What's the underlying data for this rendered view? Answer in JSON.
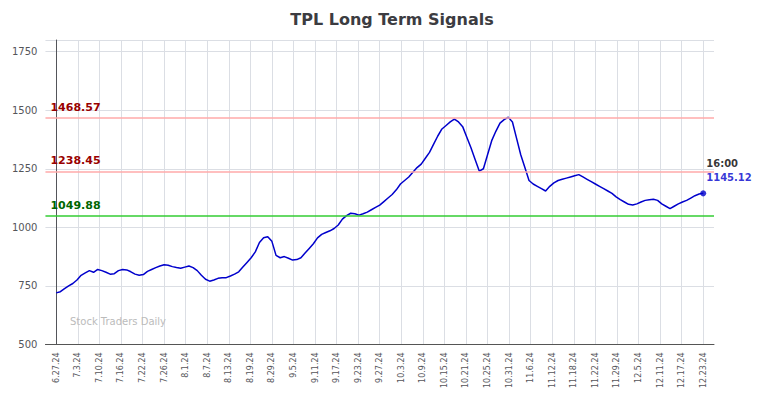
{
  "chart_data": {
    "type": "line",
    "title": "TPL Long Term Signals",
    "color": "#0000cc",
    "x": [
      0,
      0.1923,
      0.3846,
      0.5769,
      0.7692,
      0.9615,
      1.1538,
      1.3462,
      1.5385,
      1.7308,
      1.9231,
      2.1154,
      2.3077,
      2.5,
      2.6923,
      2.8846,
      3.0769,
      3.2692,
      3.4615,
      3.6538,
      3.8462,
      4.0385,
      4.2308,
      4.4231,
      4.6154,
      4.8077,
      5,
      5.1923,
      5.3846,
      5.5769,
      5.7692,
      5.9615,
      6.1538,
      6.3462,
      6.5385,
      6.7308,
      6.9231,
      7.1154,
      7.3077,
      7.5,
      7.6923,
      7.8846,
      8.0769,
      8.2692,
      8.4615,
      8.6538,
      8.8462,
      9.0385,
      9.2308,
      9.4231,
      9.6154,
      9.8077,
      10,
      10.1923,
      10.3846,
      10.5769,
      10.7692,
      10.9615,
      11.1538,
      11.3462,
      11.5385,
      11.7308,
      11.9231,
      12.1154,
      12.3077,
      12.5,
      12.6923,
      12.8846,
      13.0769,
      13.2692,
      13.4615,
      13.6538,
      13.8462,
      14.0385,
      14.2308,
      14.4231,
      14.6154,
      14.8077,
      15,
      15.1923,
      15.3846,
      15.5769,
      15.7692,
      15.9615,
      16.1538,
      16.3462,
      16.5385,
      16.7308,
      16.9231,
      17.1154,
      17.3077,
      17.5,
      17.6923,
      17.8846,
      18.0769,
      18.2692,
      18.4615,
      18.6538,
      18.8462,
      19.0385,
      19.2308,
      19.4231,
      19.6154,
      19.8077,
      20,
      20.1923,
      20.3846,
      20.5769,
      20.7692,
      20.9615,
      21.1538,
      21.3462,
      21.5385,
      21.7308,
      21.9231,
      22.1154,
      22.3077,
      22.5,
      22.6923,
      22.8846,
      23.0769,
      23.2692,
      23.4615,
      23.6538,
      23.8462,
      24.0385,
      24.2308,
      24.4231,
      24.6154,
      24.8077,
      25,
      25.1923,
      25.3846,
      25.5769,
      25.7692,
      25.9615,
      26.1538,
      26.3462,
      26.5385,
      26.7308,
      26.9231,
      27.1154,
      27.3077,
      27.5,
      27.6923,
      27.8846,
      28.0769,
      28.2692,
      28.4615,
      28.6538,
      28.8462,
      29.0385,
      29.2308,
      29.4231,
      29.6154,
      29.8077,
      30
    ],
    "values": [
      720,
      725,
      738,
      750,
      760,
      775,
      795,
      805,
      815,
      808,
      820,
      815,
      808,
      800,
      802,
      815,
      820,
      818,
      810,
      800,
      795,
      798,
      812,
      820,
      828,
      835,
      840,
      838,
      832,
      828,
      825,
      830,
      835,
      828,
      815,
      795,
      778,
      770,
      775,
      782,
      785,
      785,
      792,
      800,
      810,
      830,
      850,
      870,
      895,
      935,
      955,
      960,
      940,
      880,
      870,
      875,
      868,
      860,
      862,
      870,
      890,
      910,
      930,
      955,
      970,
      978,
      985,
      995,
      1010,
      1035,
      1050,
      1060,
      1058,
      1052,
      1058,
      1065,
      1075,
      1085,
      1095,
      1110,
      1125,
      1140,
      1160,
      1185,
      1200,
      1215,
      1235,
      1255,
      1270,
      1295,
      1320,
      1355,
      1390,
      1420,
      1435,
      1450,
      1462,
      1450,
      1430,
      1385,
      1340,
      1290,
      1240,
      1250,
      1310,
      1370,
      1410,
      1445,
      1460,
      1470,
      1450,
      1380,
      1310,
      1255,
      1200,
      1185,
      1175,
      1165,
      1155,
      1175,
      1190,
      1200,
      1205,
      1210,
      1215,
      1220,
      1225,
      1215,
      1205,
      1195,
      1185,
      1175,
      1165,
      1155,
      1145,
      1130,
      1118,
      1108,
      1098,
      1095,
      1100,
      1108,
      1115,
      1118,
      1120,
      1115,
      1100,
      1090,
      1080,
      1090,
      1100,
      1108,
      1115,
      1125,
      1135,
      1142,
      1145
    ],
    "xlim": [
      -0.5,
      30.5
    ],
    "xticks": [
      {
        "value": 0,
        "label": "6.27.24"
      },
      {
        "value": 1,
        "label": "7.3.24"
      },
      {
        "value": 2,
        "label": "7.10.24"
      },
      {
        "value": 3,
        "label": "7.16.24"
      },
      {
        "value": 4,
        "label": "7.22.24"
      },
      {
        "value": 5,
        "label": "7.26.24"
      },
      {
        "value": 6,
        "label": "8.1.24"
      },
      {
        "value": 7,
        "label": "8.7.24"
      },
      {
        "value": 8,
        "label": "8.13.24"
      },
      {
        "value": 9,
        "label": "8.19.24"
      },
      {
        "value": 10,
        "label": "8.29.24"
      },
      {
        "value": 11,
        "label": "9.5.24"
      },
      {
        "value": 12,
        "label": "9.11.24"
      },
      {
        "value": 13,
        "label": "9.17.24"
      },
      {
        "value": 14,
        "label": "9.23.24"
      },
      {
        "value": 15,
        "label": "9.27.24"
      },
      {
        "value": 16,
        "label": "10.3.24"
      },
      {
        "value": 17,
        "label": "10.9.24"
      },
      {
        "value": 18,
        "label": "10.15.24"
      },
      {
        "value": 19,
        "label": "10.21.24"
      },
      {
        "value": 20,
        "label": "10.25.24"
      },
      {
        "value": 21,
        "label": "10.31.24"
      },
      {
        "value": 22,
        "label": "11.6.24"
      },
      {
        "value": 23,
        "label": "11.12.24"
      },
      {
        "value": 24,
        "label": "11.18.24"
      },
      {
        "value": 25,
        "label": "11.22.24"
      },
      {
        "value": 26,
        "label": "11.29.24"
      },
      {
        "value": 27,
        "label": "12.5.24"
      },
      {
        "value": 28,
        "label": "12.11.24"
      },
      {
        "value": 29,
        "label": "12.17.24"
      },
      {
        "value": 30,
        "label": "12.23.24"
      }
    ],
    "ylim": [
      500,
      1800
    ],
    "yticks": [
      500,
      750,
      1000,
      1250,
      1500,
      1750
    ],
    "grid": true,
    "reference_lines": [
      {
        "value": 1049.88,
        "label": "1049.88",
        "color": "#33cc33",
        "label_color": "#006600"
      },
      {
        "value": 1238.45,
        "label": "1238.45",
        "color": "#ffaaaa",
        "label_color": "#990000"
      },
      {
        "value": 1468.57,
        "label": "1468.57",
        "color": "#ffaaaa",
        "label_color": "#990000"
      }
    ],
    "annotations": [
      {
        "text": "16:00",
        "color": "#000000"
      },
      {
        "text": "1145.12",
        "color": "#0000cc"
      }
    ],
    "watermark": {
      "text": "Stock Traders Daily",
      "color": "#bbbbbb"
    }
  }
}
